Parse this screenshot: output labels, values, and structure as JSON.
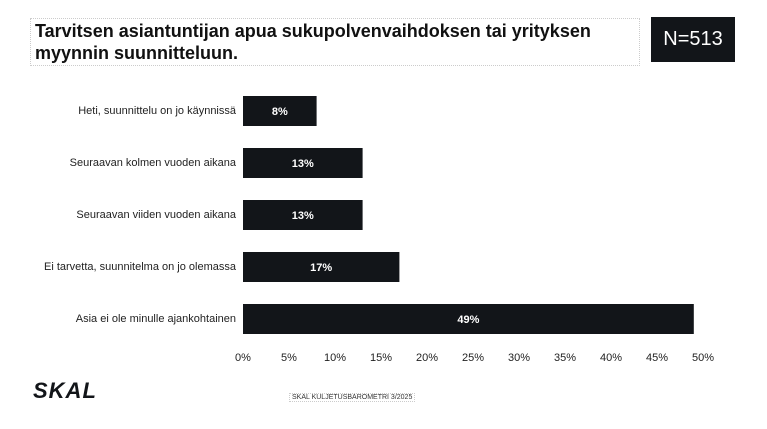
{
  "chart_data": {
    "type": "bar",
    "orientation": "horizontal",
    "title": "Tarvitsen asiantuntijan apua sukupolvenvaihdoksen tai yrityksen myynnin suunnitteluun.",
    "categories": [
      "Heti, suunnittelu on jo käynnissä",
      "Seuraavan kolmen vuoden aikana",
      "Seuraavan viiden vuoden aikana",
      "Ei tarvetta, suunnitelma on jo olemassa",
      "Asia ei ole minulle ajankohtainen"
    ],
    "values": [
      8,
      13,
      13,
      17,
      49
    ],
    "value_labels": [
      "8%",
      "13%",
      "13%",
      "17%",
      "49%"
    ],
    "color": "#121519",
    "xlim": [
      0,
      50
    ],
    "xticks": [
      {
        "value": 0,
        "label": "0%"
      },
      {
        "value": 5,
        "label": "5%"
      },
      {
        "value": 10,
        "label": "10%"
      },
      {
        "value": 15,
        "label": "15%"
      },
      {
        "value": 20,
        "label": "20%"
      },
      {
        "value": 25,
        "label": "25%"
      },
      {
        "value": 30,
        "label": "30%"
      },
      {
        "value": 35,
        "label": "35%"
      },
      {
        "value": 40,
        "label": "40%"
      },
      {
        "value": 45,
        "label": "45%"
      },
      {
        "value": 50,
        "label": "50%"
      }
    ],
    "grid": false
  },
  "badge": "N=513",
  "logo": "SKAL",
  "footer": "SKAL KULJETUSBAROMETRI 3/2025"
}
